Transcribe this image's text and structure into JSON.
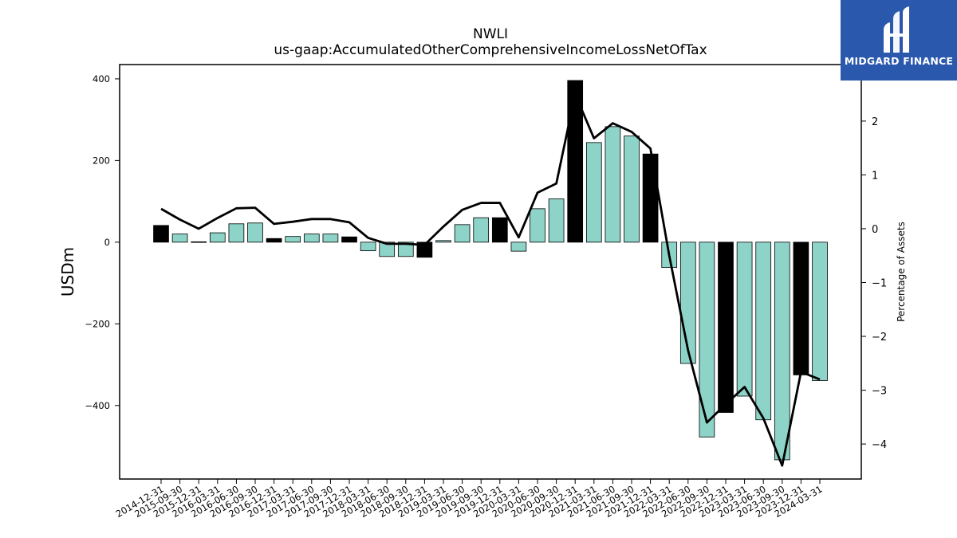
{
  "chart_data": {
    "type": "bar",
    "title": "NWLI",
    "subtitle": "us-gaap:AccumulatedOtherComprehensiveIncomeLossNetOfTax",
    "ylabel": "USDm",
    "y2label": "Percentage of Assets",
    "ylim": [
      -580,
      435
    ],
    "y2lim": [
      -4.65,
      3.05
    ],
    "yticks": [
      400,
      200,
      0,
      -200,
      -400
    ],
    "ytick_labels": [
      "400",
      "200",
      "0",
      "−200",
      "−400"
    ],
    "y2ticks": [
      2,
      1,
      0,
      -1,
      -2,
      -3,
      -4
    ],
    "y2tick_labels": [
      "2",
      "1",
      "0",
      "−1",
      "−2",
      "−3",
      "−4"
    ],
    "categories": [
      "2014-12-31",
      "2015-09-30",
      "2015-12-31",
      "2016-03-31",
      "2016-06-30",
      "2016-09-30",
      "2016-12-31",
      "2017-03-31",
      "2017-06-30",
      "2017-09-30",
      "2017-12-31",
      "2018-03-31",
      "2018-06-30",
      "2018-09-30",
      "2018-12-31",
      "2019-03-31",
      "2019-06-30",
      "2019-09-30",
      "2019-12-31",
      "2020-03-31",
      "2020-06-30",
      "2020-09-30",
      "2020-12-31",
      "2021-03-31",
      "2021-06-30",
      "2021-09-30",
      "2021-12-31",
      "2022-03-31",
      "2022-06-30",
      "2022-09-30",
      "2022-12-31",
      "2023-03-31",
      "2023-06-30",
      "2023-09-30",
      "2023-12-31",
      "2024-03-31"
    ],
    "series": [
      {
        "kind": "bar",
        "values": [
          41,
          20,
          1,
          23,
          45,
          47,
          9,
          14,
          20,
          20,
          13,
          -21,
          -35,
          -35,
          -37,
          4,
          43,
          60,
          60,
          -22,
          82,
          106,
          396,
          244,
          283,
          260,
          216,
          -62,
          -297,
          -477,
          -417,
          -377,
          -435,
          -533,
          -325,
          -339
        ],
        "highlight": [
          true,
          false,
          false,
          false,
          false,
          false,
          true,
          false,
          false,
          false,
          true,
          false,
          false,
          false,
          true,
          false,
          false,
          false,
          true,
          false,
          false,
          false,
          true,
          false,
          false,
          false,
          true,
          false,
          false,
          false,
          true,
          false,
          false,
          false,
          true,
          false
        ]
      },
      {
        "kind": "line",
        "axis": "secondary",
        "values": [
          0.37,
          0.17,
          0.0,
          0.2,
          0.38,
          0.39,
          0.09,
          0.13,
          0.18,
          0.18,
          0.12,
          -0.17,
          -0.28,
          -0.28,
          -0.3,
          0.04,
          0.35,
          0.48,
          0.48,
          -0.16,
          0.67,
          0.84,
          2.5,
          1.68,
          1.96,
          1.8,
          1.49,
          -0.5,
          -2.26,
          -3.6,
          -3.26,
          -2.94,
          -3.52,
          -4.4,
          -2.66,
          -2.8
        ]
      }
    ],
    "colors": {
      "bar": "#8dd3c7",
      "highlight_bar": "#000000",
      "line": "#000000"
    }
  },
  "logo": {
    "text": "MIDGARD FINANCE",
    "background": "#2a58ad"
  }
}
